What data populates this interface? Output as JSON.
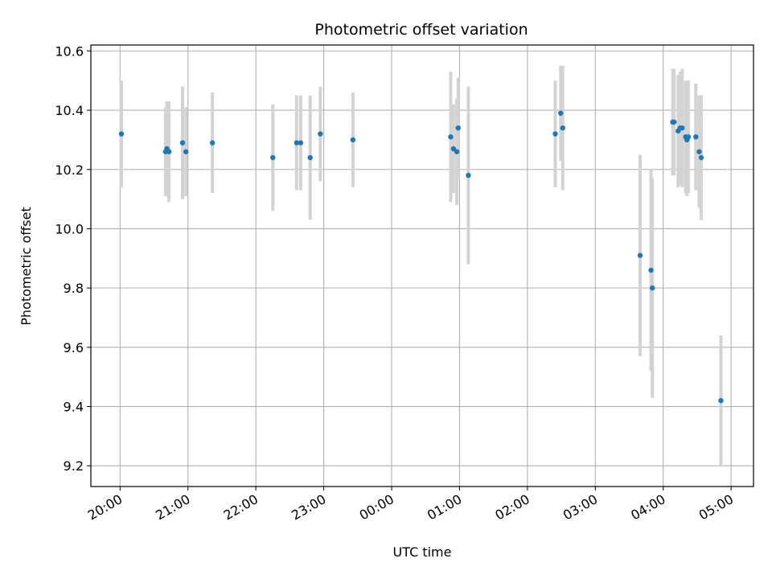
{
  "chart_data": {
    "type": "scatter",
    "title": "Photometric offset variation",
    "xlabel": "UTC time",
    "ylabel": "Photometric offset",
    "grid": true,
    "x_unit": "hours since 20:00 UTC",
    "xlim": [
      -0.43,
      9.33
    ],
    "ylim": [
      9.13,
      10.62
    ],
    "x_ticks": [
      {
        "value": 0,
        "label": "20:00"
      },
      {
        "value": 1,
        "label": "21:00"
      },
      {
        "value": 2,
        "label": "22:00"
      },
      {
        "value": 3,
        "label": "23:00"
      },
      {
        "value": 4,
        "label": "00:00"
      },
      {
        "value": 5,
        "label": "01:00"
      },
      {
        "value": 6,
        "label": "02:00"
      },
      {
        "value": 7,
        "label": "03:00"
      },
      {
        "value": 8,
        "label": "04:00"
      },
      {
        "value": 9,
        "label": "05:00"
      }
    ],
    "y_ticks": [
      {
        "value": 9.2,
        "label": "9.2"
      },
      {
        "value": 9.4,
        "label": "9.4"
      },
      {
        "value": 9.6,
        "label": "9.6"
      },
      {
        "value": 9.8,
        "label": "9.8"
      },
      {
        "value": 10.0,
        "label": "10.0"
      },
      {
        "value": 10.2,
        "label": "10.2"
      },
      {
        "value": 10.4,
        "label": "10.4"
      },
      {
        "value": 10.6,
        "label": "10.6"
      }
    ],
    "point_color": "#1f77b4",
    "errorbar_color": "#d3d3d3",
    "points": [
      {
        "x": 0.02,
        "y": 10.32,
        "err": 0.18
      },
      {
        "x": 0.67,
        "y": 10.26,
        "err": 0.15
      },
      {
        "x": 0.69,
        "y": 10.27,
        "err": 0.16
      },
      {
        "x": 0.72,
        "y": 10.26,
        "err": 0.17
      },
      {
        "x": 0.92,
        "y": 10.29,
        "err": 0.19
      },
      {
        "x": 0.97,
        "y": 10.26,
        "err": 0.15
      },
      {
        "x": 1.36,
        "y": 10.29,
        "err": 0.17
      },
      {
        "x": 2.25,
        "y": 10.24,
        "err": 0.18
      },
      {
        "x": 2.6,
        "y": 10.29,
        "err": 0.16
      },
      {
        "x": 2.66,
        "y": 10.29,
        "err": 0.16
      },
      {
        "x": 2.8,
        "y": 10.24,
        "err": 0.21
      },
      {
        "x": 2.95,
        "y": 10.32,
        "err": 0.16
      },
      {
        "x": 3.43,
        "y": 10.3,
        "err": 0.16
      },
      {
        "x": 4.87,
        "y": 10.31,
        "err": 0.22
      },
      {
        "x": 4.91,
        "y": 10.27,
        "err": 0.15
      },
      {
        "x": 4.96,
        "y": 10.26,
        "err": 0.18
      },
      {
        "x": 4.98,
        "y": 10.34,
        "err": 0.17
      },
      {
        "x": 5.13,
        "y": 10.18,
        "err": 0.3
      },
      {
        "x": 6.41,
        "y": 10.32,
        "err": 0.18
      },
      {
        "x": 6.49,
        "y": 10.39,
        "err": 0.16
      },
      {
        "x": 6.52,
        "y": 10.34,
        "err": 0.21
      },
      {
        "x": 7.66,
        "y": 9.91,
        "err": 0.34
      },
      {
        "x": 7.82,
        "y": 9.86,
        "err": 0.34
      },
      {
        "x": 7.84,
        "y": 9.8,
        "err": 0.37
      },
      {
        "x": 8.14,
        "y": 10.36,
        "err": 0.18
      },
      {
        "x": 8.16,
        "y": 10.36,
        "err": 0.18
      },
      {
        "x": 8.22,
        "y": 10.33,
        "err": 0.19
      },
      {
        "x": 8.25,
        "y": 10.34,
        "err": 0.19
      },
      {
        "x": 8.28,
        "y": 10.34,
        "err": 0.2
      },
      {
        "x": 8.33,
        "y": 10.31,
        "err": 0.19
      },
      {
        "x": 8.35,
        "y": 10.3,
        "err": 0.19
      },
      {
        "x": 8.37,
        "y": 10.31,
        "err": 0.19
      },
      {
        "x": 8.48,
        "y": 10.31,
        "err": 0.18
      },
      {
        "x": 8.53,
        "y": 10.26,
        "err": 0.19
      },
      {
        "x": 8.56,
        "y": 10.24,
        "err": 0.21
      },
      {
        "x": 8.85,
        "y": 9.42,
        "err": 0.22
      }
    ]
  }
}
